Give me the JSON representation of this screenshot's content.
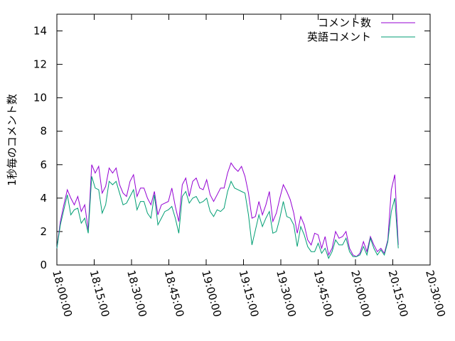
{
  "chart_data": {
    "type": "line",
    "ylabel": "1秒毎のコメント数",
    "xlabel": "",
    "ylim": [
      0,
      15
    ],
    "yticks": [
      0,
      2,
      4,
      6,
      8,
      10,
      12,
      14
    ],
    "xlim_minutes": [
      0,
      150
    ],
    "xticks": [
      "18:00:00",
      "18:15:00",
      "18:30:00",
      "18:45:00",
      "19:00:00",
      "19:15:00",
      "19:30:00",
      "19:45:00",
      "20:00:00",
      "20:15:00",
      "20:30:00"
    ],
    "legend_position": "top-right",
    "grid": false,
    "x_step_minutes": 1.4,
    "series": [
      {
        "name": "コメント数",
        "color": "#9400d3",
        "values": [
          1.0,
          2.6,
          3.6,
          4.5,
          4.0,
          3.6,
          4.1,
          3.2,
          3.6,
          2.1,
          6.0,
          5.5,
          5.9,
          4.3,
          4.7,
          5.8,
          5.5,
          5.8,
          4.8,
          4.3,
          4.1,
          5.0,
          5.4,
          4.1,
          4.6,
          4.6,
          4.0,
          3.6,
          4.4,
          3.0,
          3.6,
          3.7,
          3.8,
          4.6,
          3.5,
          2.6,
          4.8,
          5.2,
          4.1,
          5.0,
          5.2,
          4.6,
          4.5,
          5.1,
          4.2,
          3.8,
          4.2,
          4.6,
          4.6,
          5.5,
          6.1,
          5.8,
          5.6,
          5.9,
          5.3,
          4.3,
          2.8,
          2.9,
          3.8,
          3.0,
          3.6,
          4.4,
          2.6,
          3.1,
          4.0,
          4.8,
          4.4,
          3.9,
          3.1,
          1.9,
          2.9,
          2.4,
          1.5,
          1.2,
          1.9,
          1.8,
          1.0,
          1.7,
          0.6,
          1.0,
          2.0,
          1.6,
          1.7,
          2.0,
          1.0,
          0.6,
          0.5,
          0.7,
          1.4,
          0.8,
          1.7,
          1.2,
          0.8,
          1.0,
          0.7,
          1.5,
          4.5,
          5.4,
          1.2
        ]
      },
      {
        "name": "英語コメント",
        "color": "#009e73",
        "values": [
          1.0,
          2.4,
          3.3,
          4.2,
          3.0,
          3.3,
          3.4,
          2.5,
          2.8,
          1.9,
          5.3,
          4.6,
          4.5,
          3.1,
          3.6,
          5.0,
          4.8,
          5.0,
          4.3,
          3.6,
          3.7,
          4.1,
          4.5,
          3.3,
          3.8,
          3.8,
          3.1,
          2.8,
          4.2,
          2.4,
          2.8,
          3.2,
          3.3,
          3.5,
          2.8,
          1.9,
          4.1,
          4.4,
          3.7,
          4.0,
          4.1,
          3.7,
          3.8,
          4.0,
          3.2,
          2.9,
          3.3,
          3.2,
          3.4,
          4.4,
          5.0,
          4.6,
          4.5,
          4.4,
          4.3,
          3.0,
          1.2,
          2.1,
          3.0,
          2.3,
          2.8,
          3.2,
          1.9,
          2.0,
          2.8,
          3.8,
          2.9,
          2.8,
          2.4,
          1.1,
          2.3,
          1.8,
          1.1,
          0.8,
          0.8,
          1.3,
          0.7,
          1.0,
          0.4,
          0.8,
          1.5,
          1.2,
          1.2,
          1.6,
          0.8,
          0.5,
          0.5,
          0.6,
          1.1,
          0.6,
          1.6,
          1.0,
          0.6,
          0.9,
          0.6,
          1.4,
          3.2,
          4.0,
          1.0
        ]
      }
    ]
  }
}
